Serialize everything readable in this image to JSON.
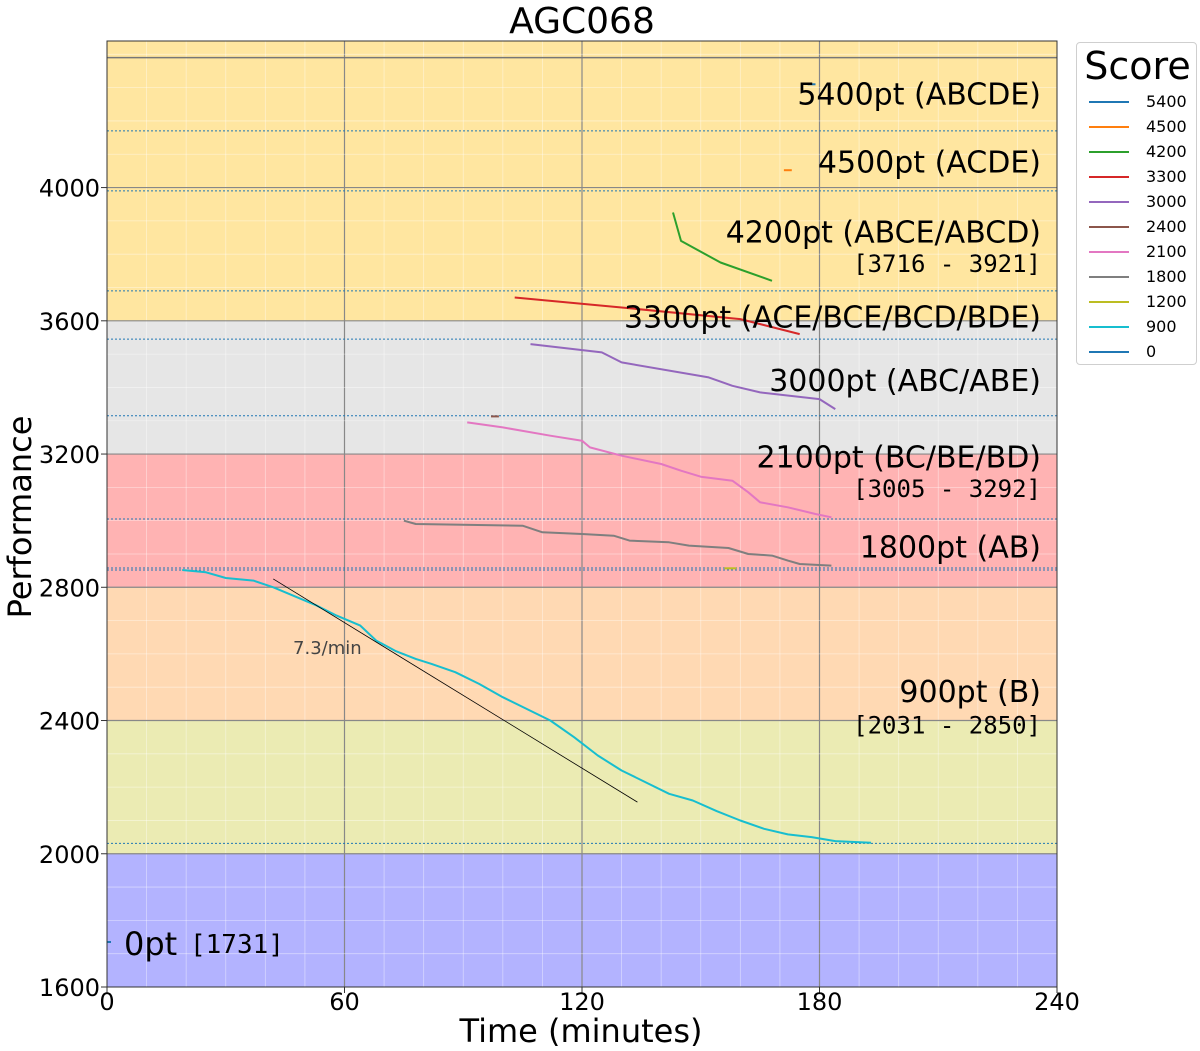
{
  "chart_data": {
    "type": "line",
    "title": "AGC068",
    "xlabel": "Time (minutes)",
    "ylabel": "Performance",
    "xlim": [
      0,
      240
    ],
    "ylim": [
      1600,
      4440
    ],
    "xticks": [
      0,
      60,
      120,
      180,
      240
    ],
    "yticks": [
      1600,
      2000,
      2400,
      2800,
      3200,
      3600,
      4000
    ],
    "grid": true,
    "legend": {
      "title": "Score",
      "placement": "outside-right",
      "entries": [
        "5400",
        "4500",
        "4200",
        "3300",
        "3000",
        "2400",
        "2100",
        "1800",
        "1200",
        "900",
        "0"
      ]
    },
    "rating_bands": [
      {
        "from": 1600,
        "to": 2000,
        "color": "#b3b3ff"
      },
      {
        "from": 2000,
        "to": 2400,
        "color": "#ebebb3"
      },
      {
        "from": 2400,
        "to": 2800,
        "color": "#ffd9b3"
      },
      {
        "from": 2800,
        "to": 3200,
        "color": "#ffb3b3"
      },
      {
        "from": 3200,
        "to": 3600,
        "color": "#e6e6e6"
      },
      {
        "from": 3600,
        "to": 4440,
        "color": "#ffe6a0"
      }
    ],
    "hlines": {
      "solid": 4390,
      "dotted": [
        4170,
        3990,
        3690,
        3545,
        3315,
        3005,
        2858,
        2852,
        2031
      ]
    },
    "series": [
      {
        "name": "5400",
        "color": "#1f77b4",
        "points": [
          [
            177,
            4310
          ],
          [
            179,
            4310
          ]
        ]
      },
      {
        "name": "4500",
        "color": "#ff7f0e",
        "points": [
          [
            171,
            4052
          ],
          [
            173,
            4052
          ]
        ]
      },
      {
        "name": "4200",
        "color": "#2ca02c",
        "points": [
          [
            143,
            3925
          ],
          [
            145,
            3840
          ],
          [
            155,
            3775
          ],
          [
            168,
            3720
          ]
        ]
      },
      {
        "name": "3300",
        "color": "#d62728",
        "points": [
          [
            103,
            3670
          ],
          [
            130,
            3640
          ],
          [
            160,
            3605
          ],
          [
            175,
            3560
          ]
        ]
      },
      {
        "name": "3000",
        "color": "#9467bd",
        "points": [
          [
            107,
            3530
          ],
          [
            125,
            3505
          ],
          [
            130,
            3475
          ],
          [
            152,
            3430
          ],
          [
            158,
            3405
          ],
          [
            165,
            3385
          ],
          [
            180,
            3365
          ],
          [
            184,
            3335
          ]
        ]
      },
      {
        "name": "2400",
        "color": "#8c564b",
        "points": [
          [
            97,
            3313
          ],
          [
            99,
            3313
          ]
        ]
      },
      {
        "name": "2100",
        "color": "#e377c2",
        "points": [
          [
            91,
            3295
          ],
          [
            100,
            3280
          ],
          [
            112,
            3255
          ],
          [
            120,
            3240
          ],
          [
            122,
            3220
          ],
          [
            130,
            3195
          ],
          [
            140,
            3170
          ],
          [
            145,
            3150
          ],
          [
            150,
            3132
          ],
          [
            158,
            3120
          ],
          [
            162,
            3085
          ],
          [
            165,
            3055
          ],
          [
            172,
            3040
          ],
          [
            179,
            3020
          ],
          [
            183,
            3010
          ]
        ]
      },
      {
        "name": "1800",
        "color": "#7f7f7f",
        "points": [
          [
            75,
            3000
          ],
          [
            78,
            2990
          ],
          [
            105,
            2985
          ],
          [
            110,
            2965
          ],
          [
            120,
            2960
          ],
          [
            128,
            2955
          ],
          [
            132,
            2940
          ],
          [
            142,
            2935
          ],
          [
            147,
            2925
          ],
          [
            157,
            2918
          ],
          [
            162,
            2900
          ],
          [
            168,
            2895
          ],
          [
            172,
            2880
          ],
          [
            175,
            2870
          ],
          [
            183,
            2865
          ]
        ]
      },
      {
        "name": "1200",
        "color": "#bcbd22",
        "points": [
          [
            156,
            2857
          ],
          [
            159,
            2857
          ]
        ]
      },
      {
        "name": "900",
        "color": "#17becf",
        "points": [
          [
            19,
            2852
          ],
          [
            25,
            2845
          ],
          [
            30,
            2828
          ],
          [
            37,
            2820
          ],
          [
            42,
            2800
          ],
          [
            47,
            2775
          ],
          [
            53,
            2745
          ],
          [
            58,
            2715
          ],
          [
            64,
            2685
          ],
          [
            68,
            2640
          ],
          [
            73,
            2608
          ],
          [
            78,
            2585
          ],
          [
            82,
            2570
          ],
          [
            88,
            2545
          ],
          [
            94,
            2510
          ],
          [
            100,
            2470
          ],
          [
            106,
            2435
          ],
          [
            112,
            2400
          ],
          [
            118,
            2350
          ],
          [
            124,
            2295
          ],
          [
            130,
            2250
          ],
          [
            136,
            2215
          ],
          [
            142,
            2180
          ],
          [
            148,
            2160
          ],
          [
            154,
            2128
          ],
          [
            160,
            2100
          ],
          [
            166,
            2075
          ],
          [
            172,
            2058
          ],
          [
            178,
            2050
          ],
          [
            184,
            2038
          ],
          [
            193,
            2033
          ]
        ]
      },
      {
        "name": "0",
        "color": "#1f77b4",
        "points": [
          [
            0,
            1735
          ],
          [
            1,
            1735
          ]
        ]
      }
    ],
    "trend_line": {
      "points": [
        [
          42,
          2825
        ],
        [
          134,
          2155
        ]
      ],
      "label": "7.3/min",
      "label_at": [
        47,
        2600
      ]
    },
    "annotations": [
      {
        "text": "5400pt (ABCDE)",
        "y": 4280
      },
      {
        "text": "4500pt (ACDE)",
        "y": 4075
      },
      {
        "text": "4200pt (ABCE/ABCD)",
        "y": 3865,
        "bracket": "[3716 - 3921]",
        "bracket_y": 3770
      },
      {
        "text": "3300pt (ACE/BCE/BCD/BDE)",
        "y": 3610
      },
      {
        "text": "3000pt (ABC/ABE)",
        "y": 3420
      },
      {
        "text": "2100pt (BC/BE/BD)",
        "y": 3190,
        "bracket": "[3005 - 3292]",
        "bracket_y": 3095
      },
      {
        "text": "1800pt (AB)",
        "y": 2920
      },
      {
        "text": "900pt (B)",
        "y": 2485,
        "bracket": "[2031 - 2850]",
        "bracket_y": 2385
      },
      {
        "text": "0pt",
        "y": 1735,
        "bracket": "[1731]"
      }
    ]
  }
}
